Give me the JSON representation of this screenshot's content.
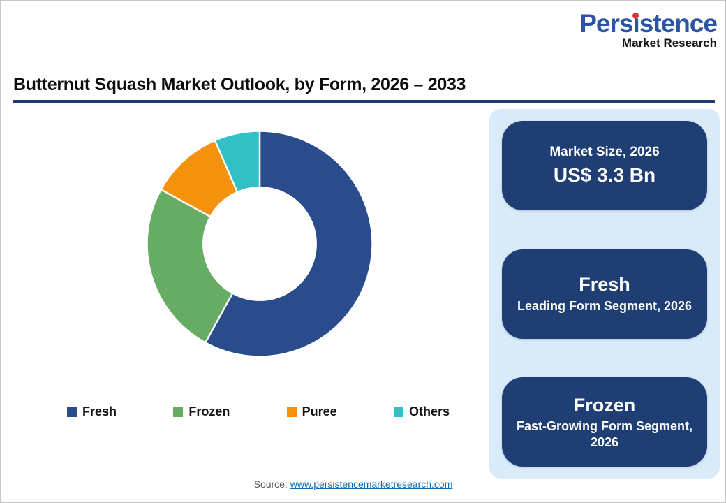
{
  "logo": {
    "brand": "Persistence",
    "tagline": "Market Research"
  },
  "title": "Butternut Squash Market Outlook, by Form, 2026 – 2033",
  "colors": {
    "brand_blue": "#2b55a2",
    "brand_red": "#d9372a",
    "title_rule_navy": "#1f3d73",
    "panel_background": "#d9ebf8",
    "box_navy": "#1f3e74",
    "link_blue": "#0e6fb8"
  },
  "chart_data": {
    "type": "pie",
    "subtype": "donut",
    "title": "Butternut Squash Market Outlook, by Form, 2026 – 2033",
    "start_angle_deg": 0,
    "direction": "clockwise",
    "inner_radius_ratio": 0.5,
    "legend_position": "bottom",
    "values_note": "percent share estimated from arc angles (no data labels shown)",
    "segments": [
      {
        "label": "Fresh",
        "value": 58.0,
        "color": "#2a4c8c"
      },
      {
        "label": "Frozen",
        "value": 25.0,
        "color": "#67ac64"
      },
      {
        "label": "Puree",
        "value": 10.5,
        "color": "#f4920d"
      },
      {
        "label": "Others",
        "value": 6.5,
        "color": "#31c1c4"
      }
    ]
  },
  "panel": {
    "boxes": [
      {
        "line1": "Market Size, 2026",
        "line2": "US$ 3.3 Bn"
      },
      {
        "line1": "Fresh",
        "line2": "Leading Form Segment, 2026"
      },
      {
        "line1": "Frozen",
        "line2": "Fast-Growing Form Segment, 2026"
      }
    ]
  },
  "source": {
    "label": "Source:",
    "link": "www.persistencemarketresearch.com"
  }
}
